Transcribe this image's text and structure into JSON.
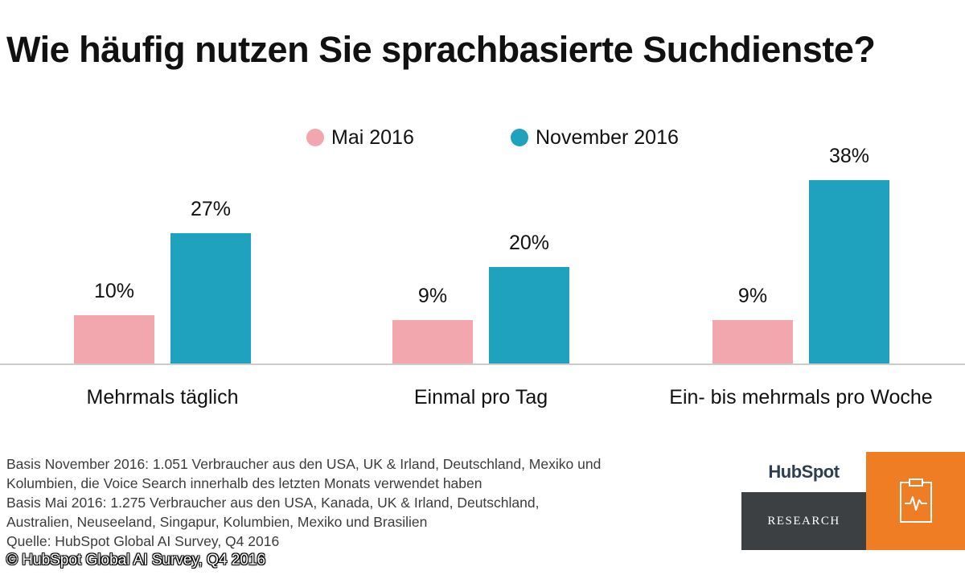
{
  "title": "Wie häufig nutzen Sie sprachbasierte Suchdienste?",
  "chart_data": {
    "type": "bar",
    "title": "Wie häufig nutzen Sie sprachbasierte Suchdienste?",
    "categories": [
      "Mehrmals täglich",
      "Einmal pro Tag",
      "Ein- bis mehrmals pro Woche"
    ],
    "series": [
      {
        "name": "Mai 2016",
        "color": "#f2a7ae",
        "values": [
          10,
          9,
          9
        ],
        "labels": [
          "10%",
          "9%",
          "9%"
        ]
      },
      {
        "name": "November 2016",
        "color": "#1fa2bd",
        "values": [
          27,
          20,
          38
        ],
        "labels": [
          "27%",
          "20%",
          "38%"
        ]
      }
    ],
    "ylim": [
      0,
      40
    ],
    "xlabel": "",
    "ylabel": "",
    "grid": false,
    "legend": "top-center"
  },
  "footnotes": [
    "Basis November 2016: 1.051 Verbraucher aus den USA, UK & Irland, Deutschland, Mexiko und",
    "Kolumbien, die Voice Search innerhalb des letzten Monats verwendet haben",
    "Basis Mai 2016: 1.275 Verbraucher aus den USA, Kanada, UK & Irland, Deutschland,",
    "Australien, Neuseeland, Singapur, Kolumbien, Mexiko und Brasilien",
    "Quelle: HubSpot Global AI Survey, Q4 2016"
  ],
  "copyright": "© HubSpot Global AI Survey, Q4 2016",
  "logo": {
    "wordmark": "HubSpot",
    "label": "RESEARCH",
    "icon": "clipboard-pulse-icon"
  },
  "colors": {
    "accent": "#ef7d23",
    "dark": "#3d4042",
    "axis": "#cccccc"
  }
}
